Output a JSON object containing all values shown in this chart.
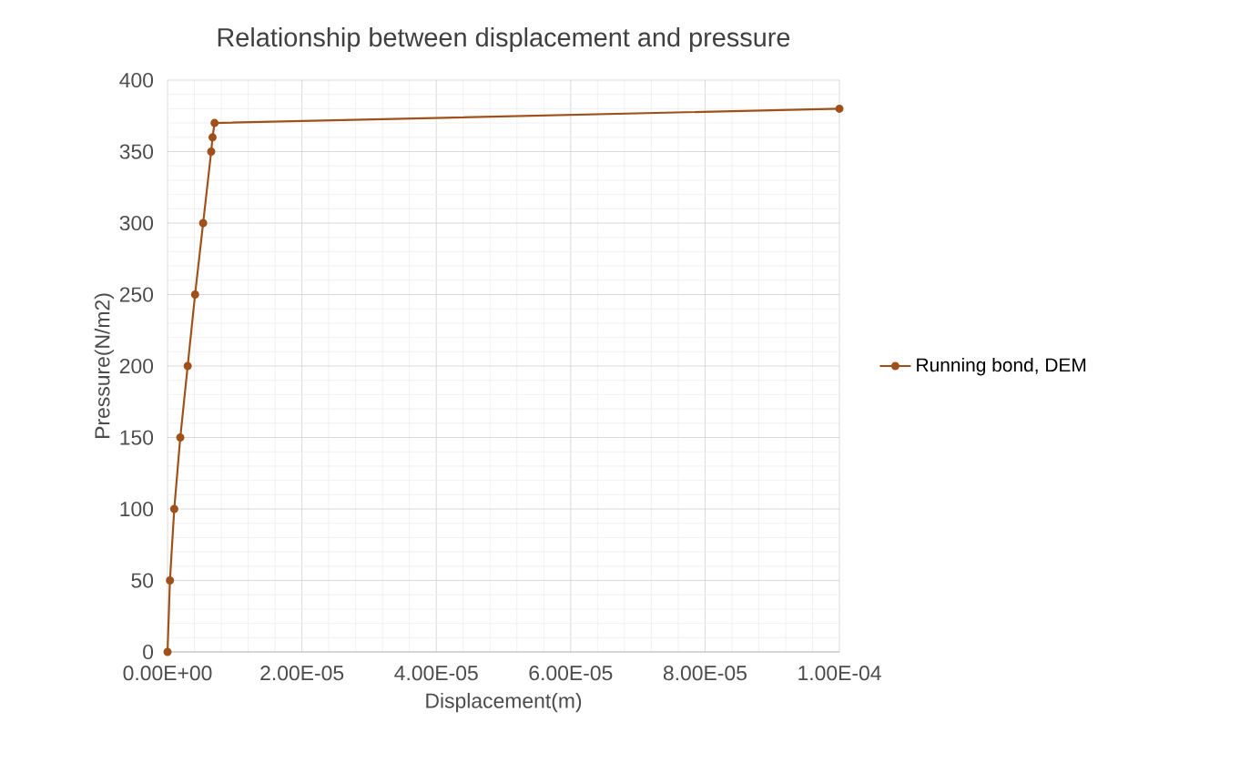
{
  "chart_data": {
    "type": "line",
    "title": "Relationship between displacement and pressure",
    "xlabel": "Displacement(m)",
    "ylabel": "Pressure(N/m2)",
    "series": [
      {
        "name": "Running bond, DEM",
        "color": "#a0501a",
        "x": [
          0,
          3.6e-07,
          1e-06,
          1.9e-06,
          3e-06,
          4.1e-06,
          5.3e-06,
          6.5e-06,
          6.7e-06,
          7e-06,
          0.0001
        ],
        "values": [
          0,
          50,
          100,
          150,
          200,
          250,
          300,
          350,
          360,
          370,
          380
        ]
      }
    ],
    "xlim": [
      0,
      0.0001
    ],
    "ylim": [
      0,
      400
    ],
    "xticks": [
      {
        "value": 0,
        "label": "0.00E+00"
      },
      {
        "value": 2e-05,
        "label": "2.00E-05"
      },
      {
        "value": 4e-05,
        "label": "4.00E-05"
      },
      {
        "value": 6e-05,
        "label": "6.00E-05"
      },
      {
        "value": 8e-05,
        "label": "8.00E-05"
      },
      {
        "value": 0.0001,
        "label": "1.00E-04"
      }
    ],
    "yticks": [
      0,
      50,
      100,
      150,
      200,
      250,
      300,
      350,
      400
    ],
    "grid": true,
    "legend": "right",
    "marker": "circle",
    "line_style": "solid"
  }
}
